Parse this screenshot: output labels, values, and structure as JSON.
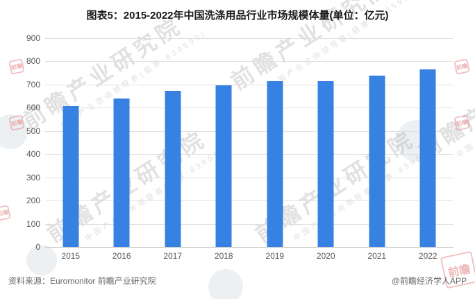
{
  "title": "图表5：2015-2022年中国洗涤用品行业市场规模体量(单位：亿元)",
  "chart_data": {
    "type": "bar",
    "title": "图表5：2015-2022年中国洗涤用品行业市场规模体量(单位：亿元)",
    "categories": [
      "2015",
      "2016",
      "2017",
      "2018",
      "2019",
      "2020",
      "2021",
      "2022"
    ],
    "values": [
      607,
      641,
      674,
      696,
      714,
      714,
      738,
      766
    ],
    "xlabel": "",
    "ylabel": "",
    "ylim": [
      0,
      900
    ],
    "yticks": [
      0,
      100,
      200,
      300,
      400,
      500,
      600,
      700,
      800,
      900
    ],
    "grid": true,
    "legend": null,
    "unit": "亿元",
    "bar_color": "#3781e3"
  },
  "footer": {
    "source": "资料来源：Euromonitor 前瞻产业研究院",
    "credit": "@前瞻经济学人APP"
  },
  "watermark": {
    "main": "前瞻产业研究院",
    "sub": "中国产业咨询领导者(股票:839599)",
    "logo": "前瞻"
  },
  "colors": {
    "bar": "#3781e3",
    "gridline": "#e0e0e0",
    "axis_line": "#c9c9c9",
    "title_text": "#1a1a1a",
    "tick_text": "#595959",
    "footer_text": "#666666",
    "watermark_gray": "#9e9e9e",
    "watermark_red": "#e07a7a"
  }
}
